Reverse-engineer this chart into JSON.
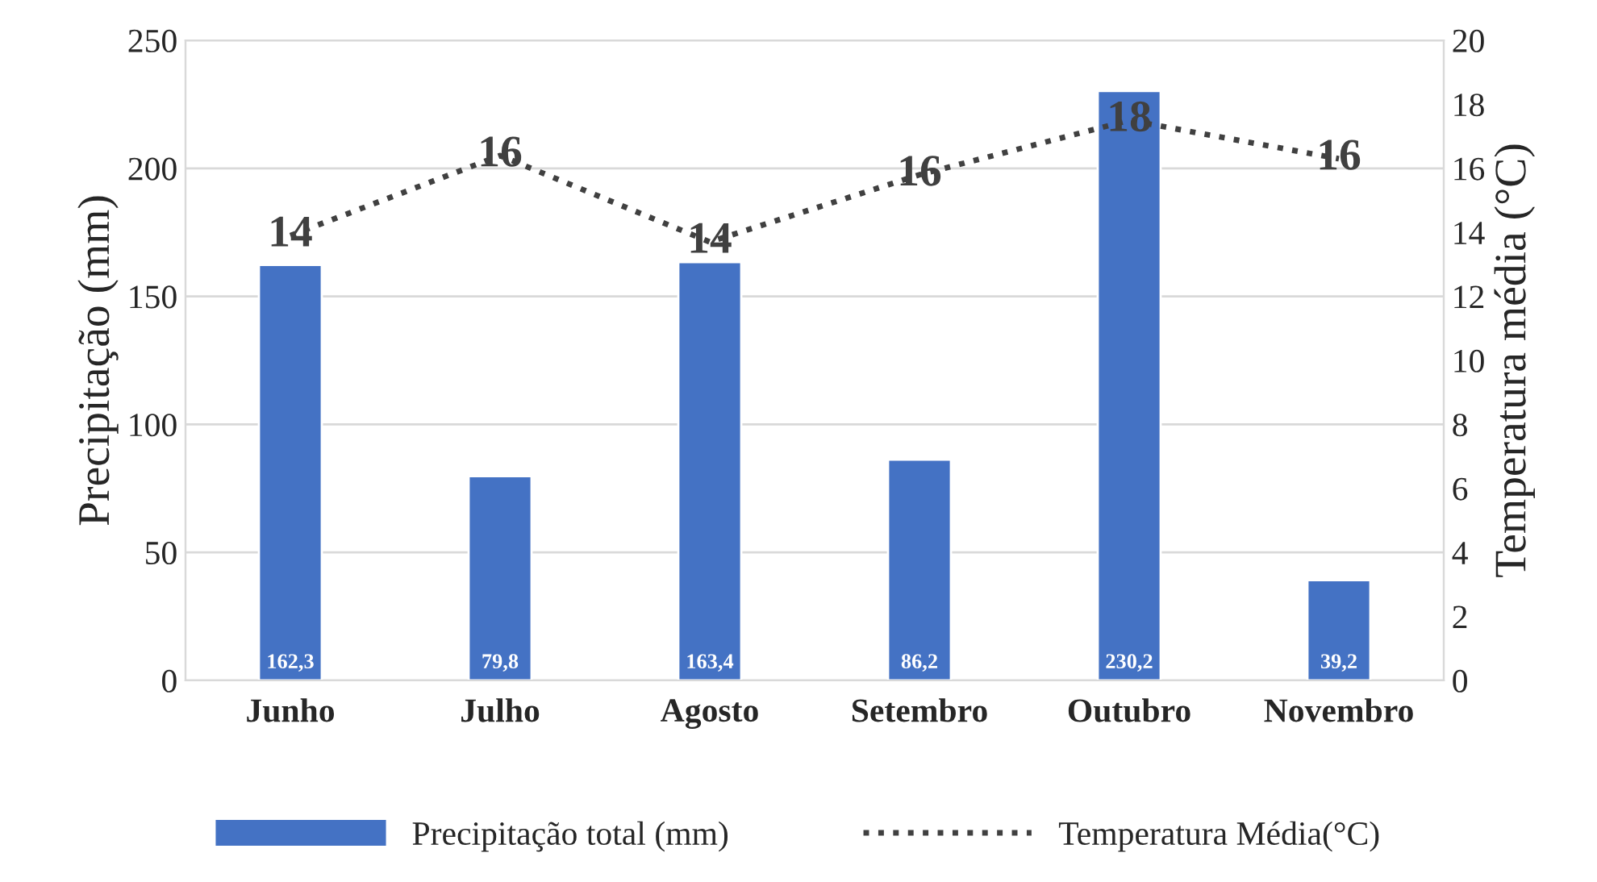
{
  "chart_data": {
    "type": "bar",
    "categories": [
      "Junho",
      "Julho",
      "Agosto",
      "Setembro",
      "Outubro",
      "Novembro"
    ],
    "ylabel": "Precipitação (mm)",
    "y2label": "Temperatura média (°C)",
    "series": [
      {
        "name": "Precipitação total (mm)",
        "color": "#4472c4",
        "values": [
          162.3,
          79.8,
          163.4,
          86.2,
          230.2,
          39.2
        ],
        "value_labels": [
          "162,3",
          "79,8",
          "163,4",
          "86,2",
          "230,2",
          "39,2"
        ]
      },
      {
        "name": "Temperatura Média(°C)",
        "type": "line",
        "axis": "y2",
        "color": "#404040",
        "line_style": "dotted",
        "values": [
          13.9,
          16.4,
          13.7,
          15.8,
          17.5,
          16.3
        ],
        "value_labels": [
          "14",
          "16",
          "14",
          "16",
          "18",
          "16"
        ]
      }
    ],
    "ylim": [
      0,
      250
    ],
    "yticks": [
      0,
      50,
      100,
      150,
      200,
      250
    ],
    "y2lim": [
      0,
      20
    ],
    "y2ticks": [
      0,
      2,
      4,
      6,
      8,
      10,
      12,
      14,
      16,
      18,
      20
    ],
    "grid": "y",
    "legend": "bottom"
  }
}
